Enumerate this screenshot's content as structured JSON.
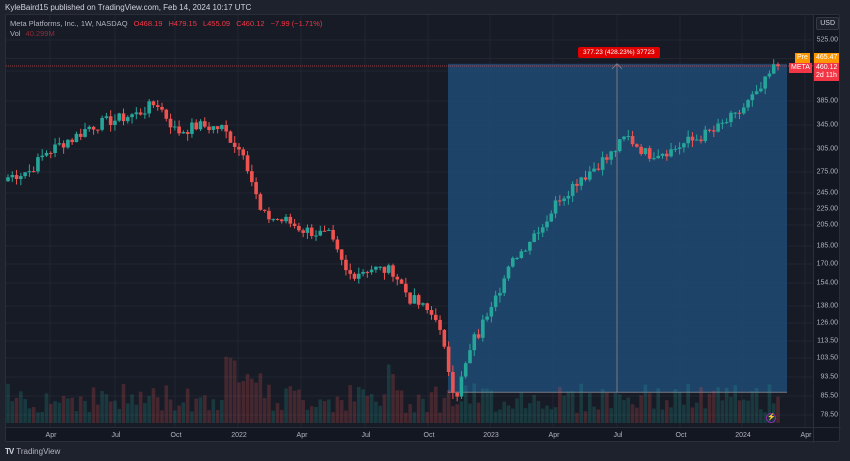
{
  "header": {
    "published_by": "KyleBaird15 published on TradingView.com, Feb 14, 2024 10:17 UTC"
  },
  "legend": {
    "symbol": "Meta Platforms, Inc., 1W, NASDAQ",
    "open": "O468.19",
    "high": "H479.15",
    "low": "L455.09",
    "close": "C460.12",
    "change": "−7.99 (−1.71%)",
    "vol_label": "Vol",
    "vol_value": "40.299M"
  },
  "axis": {
    "currency": "USD",
    "y_ticks": [
      "525.00",
      "465.47",
      "425.00",
      "385.00",
      "345.00",
      "305.00",
      "275.00",
      "245.00",
      "225.00",
      "205.00",
      "185.00",
      "170.00",
      "154.00",
      "138.00",
      "126.00",
      "113.50",
      "103.50",
      "93.50",
      "85.50",
      "78.50"
    ],
    "x_ticks": [
      "Apr",
      "Jul",
      "Oct",
      "2022",
      "Apr",
      "Jul",
      "Oct",
      "2023",
      "Apr",
      "Jul",
      "Oct",
      "2024",
      "Apr"
    ]
  },
  "price_badges": {
    "pre_label": "Pre",
    "pre_value": "465.47",
    "ticker_label": "META",
    "last_value": "460.12",
    "countdown": "2d 11h"
  },
  "measure": {
    "label": "377.23 (428.23%) 37723"
  },
  "footer": {
    "brand": "TradingView"
  },
  "colors": {
    "up": "#26a69a",
    "down": "#ef5350",
    "measure_fill": "#1e4a74",
    "pre_badge": "#ff9800",
    "last_badge": "#f23645"
  },
  "chart_data": {
    "type": "candlestick",
    "title": "Meta Platforms, Inc., 1W, NASDAQ",
    "xlabel": "",
    "ylabel": "USD",
    "ylim": [
      75,
      540
    ],
    "y_scale": "log",
    "x_range": [
      "2021-02",
      "2024-04"
    ],
    "grid": true,
    "last_ohlc": {
      "open": 468.19,
      "high": 479.15,
      "low": 455.09,
      "close": 460.12,
      "change": -7.99,
      "change_pct": -1.71,
      "volume": "40.299M"
    },
    "measure_tool": {
      "from_price": 88.09,
      "to_price": 465.32,
      "change": 377.23,
      "change_pct": 428.23,
      "ticks": 37723
    },
    "approx_weekly_closes": [
      {
        "date": "2021-02",
        "close": 262
      },
      {
        "date": "2021-03",
        "close": 270
      },
      {
        "date": "2021-04",
        "close": 300
      },
      {
        "date": "2021-05",
        "close": 318
      },
      {
        "date": "2021-06",
        "close": 340
      },
      {
        "date": "2021-07",
        "close": 350
      },
      {
        "date": "2021-08",
        "close": 360
      },
      {
        "date": "2021-09",
        "close": 380
      },
      {
        "date": "2021-10",
        "close": 330
      },
      {
        "date": "2021-11",
        "close": 340
      },
      {
        "date": "2021-12",
        "close": 336
      },
      {
        "date": "2022-01",
        "close": 300
      },
      {
        "date": "2022-02",
        "close": 215
      },
      {
        "date": "2022-03",
        "close": 210
      },
      {
        "date": "2022-04",
        "close": 200
      },
      {
        "date": "2022-05",
        "close": 195
      },
      {
        "date": "2022-06",
        "close": 160
      },
      {
        "date": "2022-07",
        "close": 165
      },
      {
        "date": "2022-08",
        "close": 163
      },
      {
        "date": "2022-09",
        "close": 140
      },
      {
        "date": "2022-10",
        "close": 130
      },
      {
        "date": "2022-11",
        "close": 88
      },
      {
        "date": "2022-12",
        "close": 118
      },
      {
        "date": "2023-01",
        "close": 150
      },
      {
        "date": "2023-02",
        "close": 180
      },
      {
        "date": "2023-03",
        "close": 205
      },
      {
        "date": "2023-04",
        "close": 240
      },
      {
        "date": "2023-05",
        "close": 265
      },
      {
        "date": "2023-06",
        "close": 287
      },
      {
        "date": "2023-07",
        "close": 320
      },
      {
        "date": "2023-08",
        "close": 295
      },
      {
        "date": "2023-09",
        "close": 300
      },
      {
        "date": "2023-10",
        "close": 315
      },
      {
        "date": "2023-11",
        "close": 330
      },
      {
        "date": "2023-12",
        "close": 355
      },
      {
        "date": "2024-01",
        "close": 395
      },
      {
        "date": "2024-02",
        "close": 460
      }
    ]
  }
}
